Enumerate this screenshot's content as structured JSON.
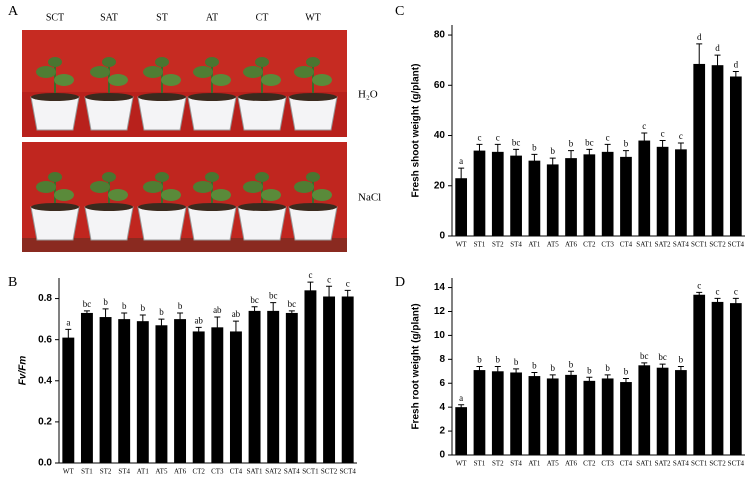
{
  "photo_panel": {
    "panel": "A",
    "labels": [
      "SCT",
      "SAT",
      "ST",
      "AT",
      "CT",
      "WT"
    ],
    "conditions": [
      "H₂O",
      "NaCl"
    ]
  },
  "chart_data": [
    {
      "type": "bar",
      "panel": "B",
      "y_label": "Fv/Fm",
      "color": "#000000",
      "categories": [
        "WT",
        "ST1",
        "ST2",
        "ST4",
        "AT1",
        "AT5",
        "AT6",
        "CT2",
        "CT3",
        "CT4",
        "SAT1",
        "SAT2",
        "SAT4",
        "SCT1",
        "SCT2",
        "SCT4"
      ],
      "values": [
        0.61,
        0.73,
        0.71,
        0.7,
        0.69,
        0.67,
        0.7,
        0.64,
        0.66,
        0.64,
        0.74,
        0.74,
        0.73,
        0.84,
        0.81,
        0.81
      ],
      "errors": [
        0.04,
        0.01,
        0.04,
        0.03,
        0.03,
        0.03,
        0.03,
        0.02,
        0.05,
        0.05,
        0.02,
        0.04,
        0.01,
        0.04,
        0.05,
        0.03
      ],
      "significance": [
        "a",
        "bc",
        "b",
        "b",
        "b",
        "b",
        "b",
        "ab",
        "ab",
        "ab",
        "bc",
        "bc",
        "bc",
        "c",
        "c",
        "c"
      ],
      "ylim": [
        0,
        0.9
      ],
      "yticks": [
        {
          "value": 0,
          "label": "0.0"
        },
        0.2,
        0.4,
        0.6,
        0.8
      ]
    },
    {
      "type": "bar",
      "panel": "C",
      "y_label": "Fresh shoot weight (g/plant)",
      "color": "#000000",
      "categories": [
        "WT",
        "ST1",
        "ST2",
        "ST4",
        "AT1",
        "AT5",
        "AT6",
        "CT2",
        "CT3",
        "CT4",
        "SAT1",
        "SAT2",
        "SAT4",
        "SCT1",
        "SCT2",
        "SCT4"
      ],
      "values": [
        23,
        34,
        33.5,
        32,
        30,
        28.5,
        31,
        32.5,
        33.5,
        31.5,
        38,
        35.5,
        34.5,
        68.5,
        68,
        63.5
      ],
      "errors": [
        4,
        2.5,
        3,
        2.5,
        2.5,
        2.5,
        3,
        2,
        3,
        2.5,
        3,
        2.5,
        2.5,
        8,
        4,
        2
      ],
      "significance": [
        "a",
        "c",
        "c",
        "bc",
        "b",
        "b",
        "b",
        "bc",
        "c",
        "b",
        "c",
        "c",
        "c",
        "d",
        "d",
        "d"
      ],
      "ylim": [
        0,
        84
      ],
      "yticks": [
        0,
        20,
        40,
        60,
        80
      ]
    },
    {
      "type": "bar",
      "panel": "D",
      "y_label": "Fresh root weight (g/plant)",
      "color": "#000000",
      "categories": [
        "WT",
        "ST1",
        "ST2",
        "ST4",
        "AT1",
        "AT5",
        "AT6",
        "CT2",
        "CT3",
        "CT4",
        "SAT1",
        "SAT2",
        "SAT4",
        "SCT1",
        "SCT2",
        "SCT4"
      ],
      "values": [
        4.0,
        7.1,
        7.0,
        6.9,
        6.6,
        6.4,
        6.7,
        6.2,
        6.4,
        6.1,
        7.5,
        7.3,
        7.1,
        13.4,
        12.8,
        12.7
      ],
      "errors": [
        0.2,
        0.3,
        0.4,
        0.3,
        0.3,
        0.3,
        0.3,
        0.3,
        0.3,
        0.3,
        0.2,
        0.3,
        0.3,
        0.2,
        0.3,
        0.4
      ],
      "significance": [
        "a",
        "b",
        "b",
        "b",
        "b",
        "b",
        "b",
        "b",
        "b",
        "b",
        "bc",
        "bc",
        "b",
        "c",
        "c",
        "c"
      ],
      "ylim": [
        0,
        14.8
      ],
      "yticks": [
        0,
        2,
        4,
        6,
        8,
        10,
        12,
        14
      ]
    }
  ]
}
